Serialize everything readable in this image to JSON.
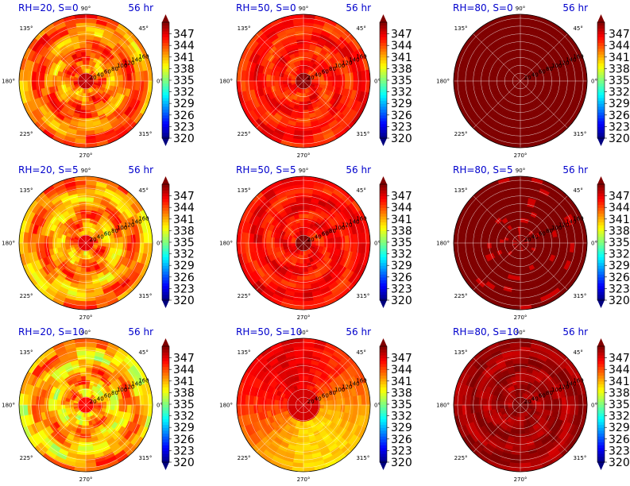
{
  "chart_data": {
    "type": "heatmap",
    "projection": "polar",
    "grid": true,
    "colormap": "jet",
    "colorbar": {
      "range": [
        320,
        350
      ],
      "ticks": [
        320,
        323,
        326,
        329,
        332,
        335,
        338,
        341,
        344,
        347
      ],
      "extend": "both"
    },
    "angular_ticks": [
      "0°",
      "45°",
      "90°",
      "135°",
      "180°",
      "225°",
      "270°",
      "315°"
    ],
    "radial_ticks": [
      20,
      40,
      60,
      80,
      100,
      120,
      140,
      160
    ],
    "panels": [
      {
        "title": "RH=20, S=0",
        "time": "56 hr",
        "mean_value": 343,
        "variability": 3.0,
        "pattern": "spiral"
      },
      {
        "title": "RH=50, S=0",
        "time": "56 hr",
        "mean_value": 345.5,
        "variability": 2.2,
        "pattern": "cells"
      },
      {
        "title": "RH=80, S=0",
        "time": "56 hr",
        "mean_value": 350,
        "variability": 0.0,
        "pattern": "uniform"
      },
      {
        "title": "RH=20, S=5",
        "time": "56 hr",
        "mean_value": 342,
        "variability": 3.0,
        "pattern": "spiral"
      },
      {
        "title": "RH=50, S=5",
        "time": "56 hr",
        "mean_value": 346,
        "variability": 2.0,
        "pattern": "cells"
      },
      {
        "title": "RH=80, S=5",
        "time": "56 hr",
        "mean_value": 350,
        "variability": 0.4,
        "pattern": "uniform"
      },
      {
        "title": "RH=20, S=10",
        "time": "56 hr",
        "mean_value": 341,
        "variability": 3.5,
        "pattern": "spiral"
      },
      {
        "title": "RH=50, S=10",
        "time": "56 hr",
        "mean_value": 343.5,
        "variability": 4.5,
        "pattern": "sheared"
      },
      {
        "title": "RH=80, S=10",
        "time": "56 hr",
        "mean_value": 349,
        "variability": 1.5,
        "pattern": "cells"
      }
    ]
  },
  "colors": {
    "title": "#0000cc",
    "grid": "#ffffff",
    "max": "#800000",
    "min": "#00007f"
  }
}
